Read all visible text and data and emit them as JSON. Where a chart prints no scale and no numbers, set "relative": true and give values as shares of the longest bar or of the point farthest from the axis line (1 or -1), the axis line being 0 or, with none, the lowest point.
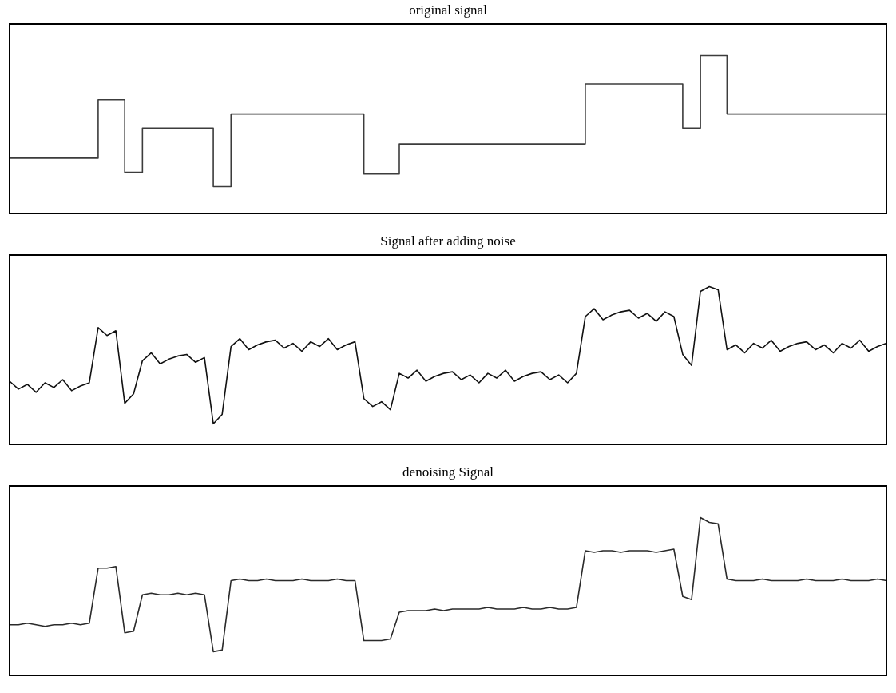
{
  "chart_data": [
    {
      "type": "step",
      "title": "original signal",
      "relative": true,
      "categories": [
        null,
        null,
        null,
        null,
        null,
        null,
        null,
        null,
        null,
        null,
        null,
        null,
        null,
        null,
        null,
        null,
        null,
        null,
        null,
        null,
        null,
        null,
        null,
        null,
        null,
        null,
        null,
        null,
        null,
        null,
        null,
        null,
        null,
        null,
        null,
        null,
        null,
        null,
        null,
        null,
        null,
        null,
        null,
        null,
        null,
        null,
        null,
        null,
        null,
        null,
        null,
        null,
        null,
        null,
        null,
        null,
        null,
        null,
        null,
        null,
        null,
        null,
        null,
        null,
        null,
        null,
        null,
        null,
        null,
        null,
        null,
        null,
        null,
        null,
        null,
        null,
        null,
        null,
        null,
        null,
        null,
        null,
        null,
        null,
        null,
        null,
        null,
        null,
        null,
        null,
        null,
        null,
        null,
        null,
        null,
        null,
        null,
        null,
        null,
        null
      ],
      "series": [
        {
          "color": "#3c3c3c",
          "values": [
            0.35,
            0.35,
            0.35,
            0.35,
            0.35,
            0.35,
            0.35,
            0.35,
            0.35,
            0.35,
            0.72,
            0.72,
            0.72,
            0.26,
            0.26,
            0.54,
            0.54,
            0.54,
            0.54,
            0.54,
            0.54,
            0.54,
            0.54,
            0.17,
            0.17,
            0.63,
            0.63,
            0.63,
            0.63,
            0.63,
            0.63,
            0.63,
            0.63,
            0.63,
            0.63,
            0.63,
            0.63,
            0.63,
            0.63,
            0.63,
            0.25,
            0.25,
            0.25,
            0.25,
            0.44,
            0.44,
            0.44,
            0.44,
            0.44,
            0.44,
            0.44,
            0.44,
            0.44,
            0.44,
            0.44,
            0.44,
            0.44,
            0.44,
            0.44,
            0.44,
            0.44,
            0.44,
            0.44,
            0.44,
            0.44,
            0.82,
            0.82,
            0.82,
            0.82,
            0.82,
            0.82,
            0.82,
            0.82,
            0.82,
            0.82,
            0.82,
            0.54,
            0.54,
            1.0,
            1.0,
            1.0,
            0.63,
            0.63,
            0.63,
            0.63,
            0.63,
            0.63,
            0.63,
            0.63,
            0.63,
            0.63,
            0.63,
            0.63,
            0.63,
            0.63,
            0.63,
            0.63,
            0.63,
            0.63,
            0.63
          ]
        }
      ]
    },
    {
      "type": "line",
      "title": "Signal after adding noise",
      "relative": true,
      "categories": [
        null,
        null,
        null,
        null,
        null,
        null,
        null,
        null,
        null,
        null,
        null,
        null,
        null,
        null,
        null,
        null,
        null,
        null,
        null,
        null,
        null,
        null,
        null,
        null,
        null,
        null,
        null,
        null,
        null,
        null,
        null,
        null,
        null,
        null,
        null,
        null,
        null,
        null,
        null,
        null,
        null,
        null,
        null,
        null,
        null,
        null,
        null,
        null,
        null,
        null,
        null,
        null,
        null,
        null,
        null,
        null,
        null,
        null,
        null,
        null,
        null,
        null,
        null,
        null,
        null,
        null,
        null,
        null,
        null,
        null,
        null,
        null,
        null,
        null,
        null,
        null,
        null,
        null,
        null,
        null,
        null,
        null,
        null,
        null,
        null,
        null,
        null,
        null,
        null,
        null,
        null,
        null,
        null,
        null,
        null,
        null,
        null,
        null,
        null,
        null
      ],
      "series": [
        {
          "color": "#111111",
          "values": [
            0.4,
            0.35,
            0.38,
            0.33,
            0.39,
            0.36,
            0.41,
            0.34,
            0.37,
            0.39,
            0.74,
            0.69,
            0.72,
            0.26,
            0.32,
            0.53,
            0.58,
            0.51,
            0.54,
            0.56,
            0.57,
            0.52,
            0.55,
            0.13,
            0.19,
            0.62,
            0.67,
            0.6,
            0.63,
            0.65,
            0.66,
            0.61,
            0.64,
            0.59,
            0.65,
            0.62,
            0.67,
            0.6,
            0.63,
            0.65,
            0.29,
            0.24,
            0.27,
            0.22,
            0.45,
            0.42,
            0.47,
            0.4,
            0.43,
            0.45,
            0.46,
            0.41,
            0.44,
            0.39,
            0.45,
            0.42,
            0.47,
            0.4,
            0.43,
            0.45,
            0.46,
            0.41,
            0.44,
            0.39,
            0.45,
            0.81,
            0.86,
            0.79,
            0.82,
            0.84,
            0.85,
            0.8,
            0.83,
            0.78,
            0.84,
            0.81,
            0.57,
            0.5,
            0.97,
            1.0,
            0.98,
            0.6,
            0.63,
            0.58,
            0.64,
            0.61,
            0.66,
            0.59,
            0.62,
            0.64,
            0.65,
            0.6,
            0.63,
            0.58,
            0.64,
            0.61,
            0.66,
            0.59,
            0.62,
            0.64
          ]
        }
      ]
    },
    {
      "type": "line",
      "title": "denoising Signal",
      "relative": true,
      "categories": [
        null,
        null,
        null,
        null,
        null,
        null,
        null,
        null,
        null,
        null,
        null,
        null,
        null,
        null,
        null,
        null,
        null,
        null,
        null,
        null,
        null,
        null,
        null,
        null,
        null,
        null,
        null,
        null,
        null,
        null,
        null,
        null,
        null,
        null,
        null,
        null,
        null,
        null,
        null,
        null,
        null,
        null,
        null,
        null,
        null,
        null,
        null,
        null,
        null,
        null,
        null,
        null,
        null,
        null,
        null,
        null,
        null,
        null,
        null,
        null,
        null,
        null,
        null,
        null,
        null,
        null,
        null,
        null,
        null,
        null,
        null,
        null,
        null,
        null,
        null,
        null,
        null,
        null,
        null,
        null,
        null,
        null,
        null,
        null,
        null,
        null,
        null,
        null,
        null,
        null,
        null,
        null,
        null,
        null,
        null,
        null,
        null,
        null,
        null,
        null
      ],
      "series": [
        {
          "color": "#2a2a2a",
          "values": [
            0.32,
            0.32,
            0.33,
            0.32,
            0.31,
            0.32,
            0.32,
            0.33,
            0.32,
            0.33,
            0.68,
            0.68,
            0.69,
            0.27,
            0.28,
            0.51,
            0.52,
            0.51,
            0.51,
            0.52,
            0.51,
            0.52,
            0.51,
            0.15,
            0.16,
            0.6,
            0.61,
            0.6,
            0.6,
            0.61,
            0.6,
            0.6,
            0.6,
            0.61,
            0.6,
            0.6,
            0.6,
            0.61,
            0.6,
            0.6,
            0.22,
            0.22,
            0.22,
            0.23,
            0.4,
            0.41,
            0.41,
            0.41,
            0.42,
            0.41,
            0.42,
            0.42,
            0.42,
            0.42,
            0.43,
            0.42,
            0.42,
            0.42,
            0.43,
            0.42,
            0.42,
            0.43,
            0.42,
            0.42,
            0.43,
            0.79,
            0.78,
            0.79,
            0.79,
            0.78,
            0.79,
            0.79,
            0.79,
            0.78,
            0.79,
            0.8,
            0.5,
            0.48,
            1.0,
            0.97,
            0.96,
            0.61,
            0.6,
            0.6,
            0.6,
            0.61,
            0.6,
            0.6,
            0.6,
            0.6,
            0.61,
            0.6,
            0.6,
            0.6,
            0.61,
            0.6,
            0.6,
            0.6,
            0.61,
            0.6
          ]
        }
      ]
    }
  ]
}
